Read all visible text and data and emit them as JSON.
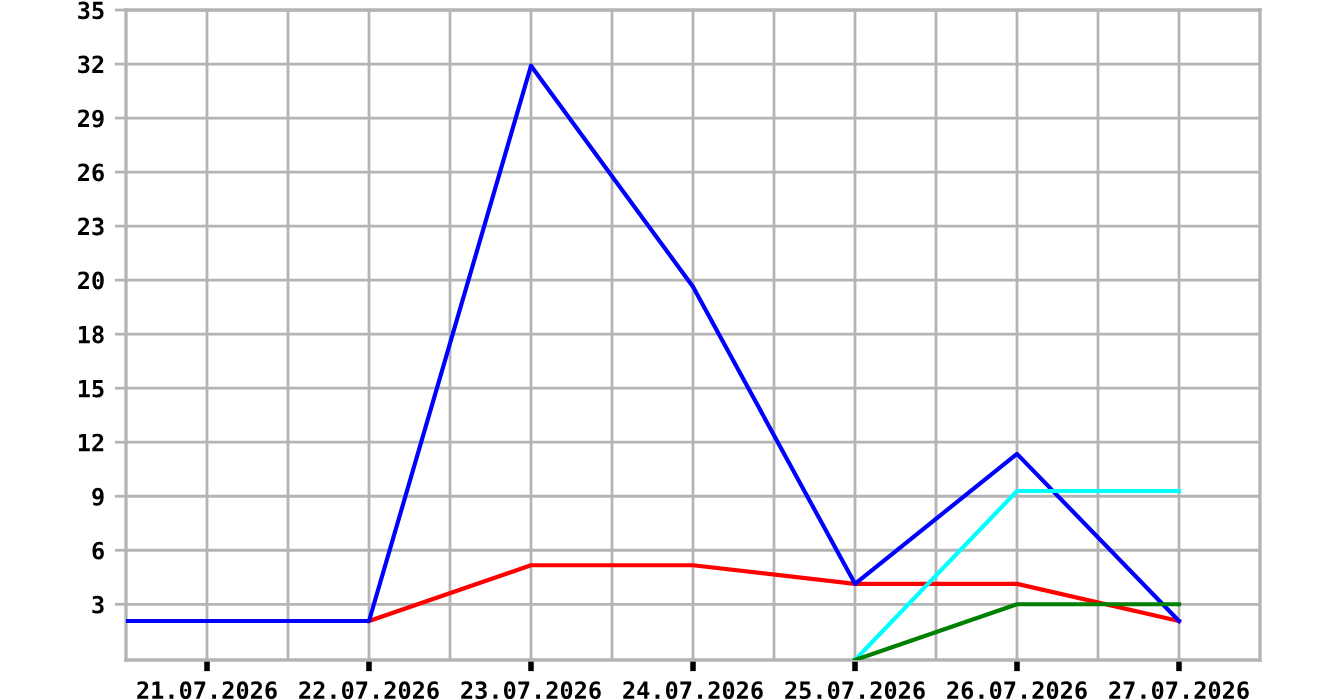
{
  "chart_data": {
    "type": "line",
    "x": [
      "2026-07-20T12:00",
      "2026-07-22",
      "2026-07-23",
      "2026-07-24",
      "2026-07-25",
      "2026-07-26",
      "2026-07-27"
    ],
    "series": [
      {
        "color": "#ff0000",
        "values": [
          null,
          2.1,
          5.1,
          5.1,
          4.1,
          4.1,
          2.1
        ]
      },
      {
        "color": "#0000ff",
        "values": [
          2.1,
          2.1,
          32,
          20.1,
          4.1,
          11.1,
          2.1
        ]
      },
      {
        "color": "#00ffff",
        "x": [
          "2026-07-25",
          "2026-07-26",
          "2026-07-27"
        ],
        "values": [
          0,
          9.1,
          9.1
        ]
      },
      {
        "color": "#008000",
        "x": [
          "2026-07-25",
          "2026-07-26",
          "2026-07-27"
        ],
        "values": [
          0,
          3,
          3
        ]
      }
    ],
    "xlim": [
      "2026-07-20T12:00",
      "2026-07-27T12:00"
    ],
    "xticks": [
      {
        "value": "2026-07-21",
        "label": "21.07.2026"
      },
      {
        "value": "2026-07-21T12:00",
        "label": null
      },
      {
        "value": "2026-07-22",
        "label": "22.07.2026"
      },
      {
        "value": "2026-07-22T12:00",
        "label": null
      },
      {
        "value": "2026-07-23",
        "label": "23.07.2026"
      },
      {
        "value": "2026-07-23T12:00",
        "label": null
      },
      {
        "value": "2026-07-24",
        "label": "24.07.2026"
      },
      {
        "value": "2026-07-24T12:00",
        "label": null
      },
      {
        "value": "2026-07-25",
        "label": "25.07.2026"
      },
      {
        "value": "2026-07-25T12:00",
        "label": null
      },
      {
        "value": "2026-07-26",
        "label": "26.07.2026"
      },
      {
        "value": "2026-07-26T12:00",
        "label": null
      },
      {
        "value": "2026-07-27",
        "label": "27.07.2026"
      }
    ],
    "ylim": [
      0,
      35
    ],
    "yticks": [
      3,
      {
        "value": 5.909,
        "label": "6"
      },
      {
        "value": 8.818,
        "label": "9"
      },
      {
        "value": 11.727,
        "label": "12"
      },
      {
        "value": 14.636,
        "label": "15"
      },
      {
        "value": 17.545,
        "label": "18"
      },
      {
        "value": 20.455,
        "label": "20"
      },
      {
        "value": 23.364,
        "label": "23"
      },
      {
        "value": 26.273,
        "label": "26"
      },
      {
        "value": 29.182,
        "label": "29"
      },
      {
        "value": 32.091,
        "label": "32"
      },
      35
    ],
    "grid": true,
    "legend": false,
    "marker": "none",
    "line_style": "solid"
  }
}
